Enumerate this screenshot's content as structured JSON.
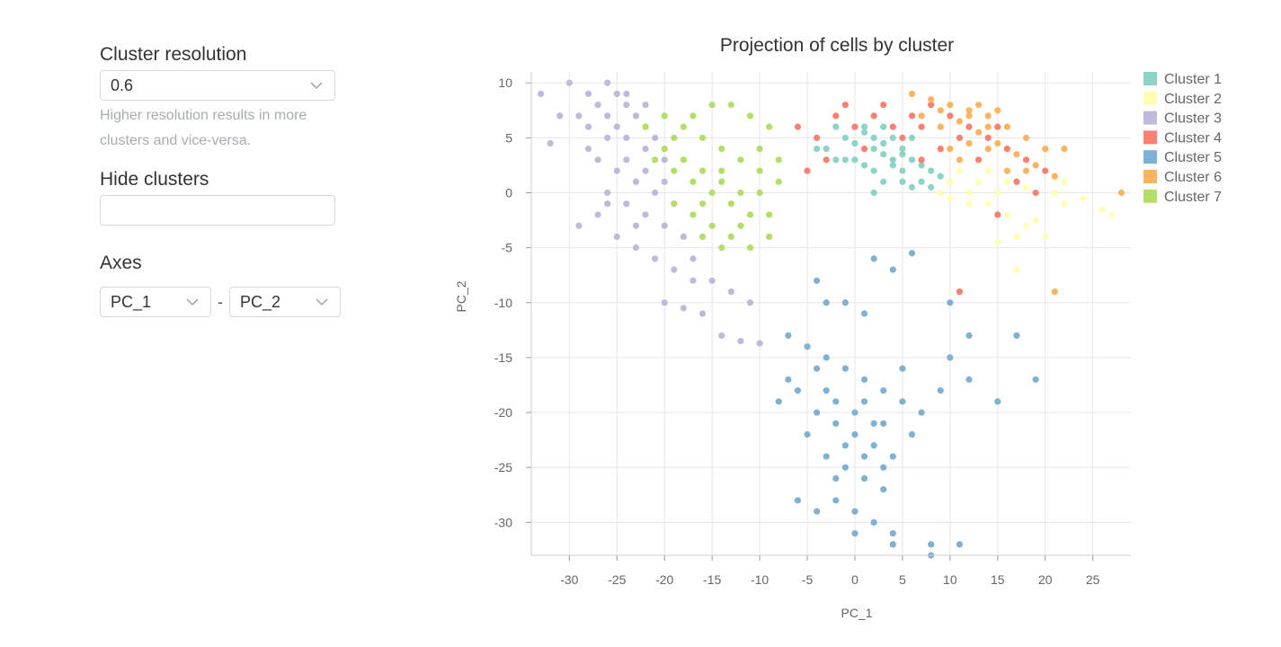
{
  "controls": {
    "resolution": {
      "label": "Cluster resolution",
      "value": "0.6",
      "hint": "Higher resolution results in more clusters and vice-versa."
    },
    "hide_clusters": {
      "label": "Hide clusters",
      "value": ""
    },
    "axes": {
      "label": "Axes",
      "x_value": "PC_1",
      "separator": "-",
      "y_value": "PC_2"
    }
  },
  "chart_data": {
    "type": "scatter",
    "title": "Projection of cells by cluster",
    "xlabel": "PC_1",
    "ylabel": "PC_2",
    "xlim": [
      -34,
      29
    ],
    "ylim": [
      -33,
      11
    ],
    "xticks": [
      -30,
      -25,
      -20,
      -15,
      -10,
      -5,
      0,
      5,
      10,
      15,
      20,
      25
    ],
    "yticks": [
      10,
      5,
      0,
      -5,
      -10,
      -15,
      -20,
      -25,
      -30
    ],
    "grid": true,
    "legend_position": "top-right",
    "series": [
      {
        "name": "Cluster 1",
        "color": "#8dd3c7",
        "points": [
          [
            -2,
            6
          ],
          [
            -1,
            5
          ],
          [
            0,
            4.5
          ],
          [
            1,
            5.5
          ],
          [
            2,
            4
          ],
          [
            3,
            3.5
          ],
          [
            4,
            5
          ],
          [
            5,
            4
          ],
          [
            6,
            3
          ],
          [
            7,
            2.5
          ],
          [
            -3,
            4
          ],
          [
            0,
            3
          ],
          [
            2,
            2
          ],
          [
            4,
            2.5
          ],
          [
            5,
            1
          ],
          [
            1,
            6
          ],
          [
            3,
            6
          ],
          [
            -1,
            3
          ],
          [
            6,
            5
          ],
          [
            8,
            2
          ],
          [
            7,
            1
          ],
          [
            3,
            1
          ],
          [
            4,
            3
          ],
          [
            2,
            5
          ],
          [
            0,
            6
          ],
          [
            -2,
            3
          ],
          [
            5,
            2
          ],
          [
            6,
            0.5
          ],
          [
            2,
            0
          ],
          [
            8,
            0.5
          ],
          [
            -4,
            4
          ],
          [
            9,
            1.5
          ],
          [
            1,
            2.5
          ],
          [
            3,
            4.5
          ],
          [
            5,
            3.5
          ]
        ]
      },
      {
        "name": "Cluster 2",
        "color": "#ffffb3",
        "points": [
          [
            10,
            1
          ],
          [
            12,
            0
          ],
          [
            14,
            -1
          ],
          [
            16,
            -2
          ],
          [
            18,
            -3
          ],
          [
            20,
            -4
          ],
          [
            22,
            1
          ],
          [
            24,
            -0.5
          ],
          [
            26,
            -1.5
          ],
          [
            27,
            -2
          ],
          [
            17,
            -7
          ],
          [
            15,
            -4.5
          ],
          [
            19,
            -2.5
          ],
          [
            13,
            1
          ],
          [
            11,
            2
          ],
          [
            9,
            0
          ],
          [
            16,
            1
          ],
          [
            21,
            0
          ],
          [
            14,
            2
          ],
          [
            12,
            -1
          ],
          [
            18,
            0.5
          ],
          [
            15,
            0
          ],
          [
            10,
            -0.5
          ],
          [
            22,
            -1
          ],
          [
            17,
            -4
          ]
        ]
      },
      {
        "name": "Cluster 3",
        "color": "#bebada",
        "points": [
          [
            -33,
            9
          ],
          [
            -32,
            4.5
          ],
          [
            -31,
            7
          ],
          [
            -30,
            10
          ],
          [
            -28,
            9
          ],
          [
            -27,
            8
          ],
          [
            -26,
            10
          ],
          [
            -25,
            9
          ],
          [
            -24,
            8
          ],
          [
            -23,
            7
          ],
          [
            -22,
            6
          ],
          [
            -28,
            6
          ],
          [
            -26,
            5
          ],
          [
            -24,
            5
          ],
          [
            -22,
            4
          ],
          [
            -20,
            3
          ],
          [
            -27,
            3
          ],
          [
            -25,
            2
          ],
          [
            -23,
            1
          ],
          [
            -21,
            0
          ],
          [
            -19,
            -1
          ],
          [
            -26,
            0
          ],
          [
            -24,
            -1
          ],
          [
            -22,
            -2
          ],
          [
            -20,
            -3
          ],
          [
            -18,
            -4
          ],
          [
            -29,
            -3
          ],
          [
            -27,
            -2
          ],
          [
            -25,
            -4
          ],
          [
            -23,
            -5
          ],
          [
            -21,
            -6
          ],
          [
            -19,
            -7
          ],
          [
            -17,
            -6
          ],
          [
            -15,
            -8
          ],
          [
            -13,
            -9
          ],
          [
            -20,
            -10
          ],
          [
            -18,
            -10.5
          ],
          [
            -16,
            -11
          ],
          [
            -14,
            -13
          ],
          [
            -12,
            -13.5
          ],
          [
            -10,
            -13.7
          ],
          [
            -28,
            4
          ],
          [
            -26,
            7
          ],
          [
            -24,
            3
          ],
          [
            -22,
            2
          ],
          [
            -20,
            1
          ],
          [
            -29,
            7
          ],
          [
            -25,
            6
          ],
          [
            -21,
            5
          ],
          [
            -23,
            -3
          ],
          [
            -17,
            -8
          ],
          [
            -11,
            -10
          ],
          [
            -26,
            -1
          ],
          [
            -24,
            9
          ],
          [
            -22,
            8
          ]
        ]
      },
      {
        "name": "Cluster 4",
        "color": "#fb8072",
        "points": [
          [
            -6,
            6
          ],
          [
            -4,
            5
          ],
          [
            -2,
            7
          ],
          [
            0,
            6
          ],
          [
            2,
            7
          ],
          [
            4,
            6
          ],
          [
            6,
            7
          ],
          [
            8,
            8
          ],
          [
            10,
            7
          ],
          [
            12,
            6
          ],
          [
            14,
            5
          ],
          [
            16,
            4
          ],
          [
            18,
            3
          ],
          [
            20,
            2
          ],
          [
            -5,
            2
          ],
          [
            -3,
            3
          ],
          [
            1,
            4
          ],
          [
            5,
            5
          ],
          [
            9,
            4
          ],
          [
            13,
            3
          ],
          [
            17,
            1
          ],
          [
            11,
            -9
          ],
          [
            15,
            -2
          ],
          [
            7,
            3
          ],
          [
            3,
            8
          ],
          [
            -1,
            8
          ],
          [
            11,
            5
          ],
          [
            19,
            0
          ],
          [
            15,
            6
          ],
          [
            7,
            6
          ]
        ]
      },
      {
        "name": "Cluster 5",
        "color": "#80b1d3",
        "points": [
          [
            2,
            -6
          ],
          [
            4,
            -7
          ],
          [
            6,
            -5.5
          ],
          [
            -4,
            -8
          ],
          [
            -3,
            -10
          ],
          [
            -1,
            -10
          ],
          [
            1,
            -11
          ],
          [
            10,
            -10
          ],
          [
            12,
            -13
          ],
          [
            17,
            -13
          ],
          [
            -7,
            -13
          ],
          [
            -5,
            -14
          ],
          [
            -3,
            -15
          ],
          [
            -1,
            -16
          ],
          [
            1,
            -17
          ],
          [
            3,
            -18
          ],
          [
            5,
            -19
          ],
          [
            -6,
            -18
          ],
          [
            -4,
            -20
          ],
          [
            -2,
            -21
          ],
          [
            0,
            -22
          ],
          [
            2,
            -23
          ],
          [
            4,
            -24
          ],
          [
            -5,
            -22
          ],
          [
            -3,
            -24
          ],
          [
            -1,
            -25
          ],
          [
            1,
            -26
          ],
          [
            3,
            -27
          ],
          [
            -2,
            -28
          ],
          [
            0,
            -29
          ],
          [
            2,
            -30
          ],
          [
            4,
            -31
          ],
          [
            -4,
            -29
          ],
          [
            -6,
            -28
          ],
          [
            -8,
            -19
          ],
          [
            -7,
            -17
          ],
          [
            7,
            -20
          ],
          [
            6,
            -22
          ],
          [
            9,
            -18
          ],
          [
            10,
            -15
          ],
          [
            12,
            -17
          ],
          [
            15,
            -19
          ],
          [
            19,
            -17
          ],
          [
            0,
            -31
          ],
          [
            4,
            -32
          ],
          [
            8,
            -32
          ],
          [
            11,
            -32
          ],
          [
            8,
            -33
          ],
          [
            -2,
            -19
          ],
          [
            0,
            -20
          ],
          [
            2,
            -21
          ],
          [
            -1,
            -23
          ],
          [
            1,
            -24
          ],
          [
            3,
            -21
          ],
          [
            -3,
            -18
          ],
          [
            5,
            -16
          ],
          [
            -2,
            -26
          ],
          [
            3,
            -25
          ],
          [
            1,
            -19
          ],
          [
            -4,
            -16
          ]
        ]
      },
      {
        "name": "Cluster 6",
        "color": "#fdb462",
        "points": [
          [
            6,
            9
          ],
          [
            8,
            8.5
          ],
          [
            10,
            8
          ],
          [
            12,
            7.5
          ],
          [
            14,
            7
          ],
          [
            16,
            6
          ],
          [
            18,
            5
          ],
          [
            20,
            4
          ],
          [
            9,
            6
          ],
          [
            11,
            6.5
          ],
          [
            13,
            5.5
          ],
          [
            15,
            4.5
          ],
          [
            17,
            3.5
          ],
          [
            19,
            2.5
          ],
          [
            21,
            1.5
          ],
          [
            22,
            4
          ],
          [
            28,
            0
          ],
          [
            21,
            -9
          ],
          [
            10,
            4
          ],
          [
            12,
            4.5
          ],
          [
            14,
            4
          ],
          [
            16,
            2
          ],
          [
            7,
            7
          ],
          [
            9,
            7.5
          ],
          [
            13,
            8
          ],
          [
            15,
            7.5
          ],
          [
            11,
            3
          ],
          [
            14,
            6
          ],
          [
            18,
            2
          ],
          [
            12,
            7
          ]
        ]
      },
      {
        "name": "Cluster 7",
        "color": "#b3de69",
        "points": [
          [
            -22,
            6
          ],
          [
            -20,
            7
          ],
          [
            -18,
            6
          ],
          [
            -16,
            5
          ],
          [
            -14,
            4
          ],
          [
            -12,
            3
          ],
          [
            -10,
            2
          ],
          [
            -8,
            1
          ],
          [
            -21,
            3
          ],
          [
            -19,
            2
          ],
          [
            -17,
            1
          ],
          [
            -15,
            0
          ],
          [
            -13,
            -1
          ],
          [
            -11,
            -2
          ],
          [
            -9,
            -4
          ],
          [
            -16,
            -4
          ],
          [
            -14,
            -5
          ],
          [
            -12,
            -3
          ],
          [
            -10,
            0
          ],
          [
            -8,
            3
          ],
          [
            -15,
            8
          ],
          [
            -13,
            8
          ],
          [
            -11,
            7
          ],
          [
            -9,
            6
          ],
          [
            -20,
            4
          ],
          [
            -18,
            3
          ],
          [
            -16,
            2
          ],
          [
            -14,
            1
          ],
          [
            -12,
            0
          ],
          [
            -19,
            -1
          ],
          [
            -17,
            -2
          ],
          [
            -15,
            -3
          ],
          [
            -13,
            -4
          ],
          [
            -11,
            -5
          ],
          [
            -9,
            -2
          ],
          [
            -17,
            7
          ],
          [
            -19,
            5
          ],
          [
            -16,
            -1
          ],
          [
            -14,
            2
          ],
          [
            -10,
            4
          ]
        ]
      }
    ]
  }
}
